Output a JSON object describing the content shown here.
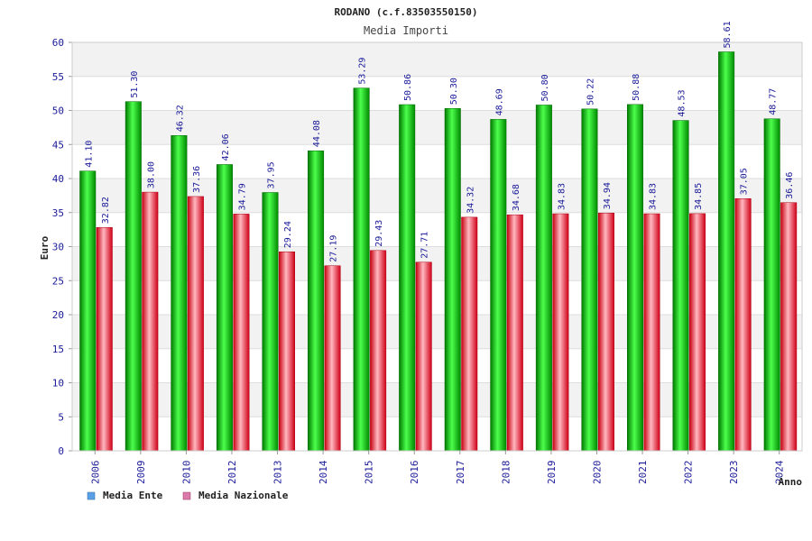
{
  "chart_data": {
    "type": "bar",
    "title": "RODANO (c.f.83503550150)",
    "subtitle": "Media Importi",
    "xlabel": "Anno",
    "ylabel": "Euro",
    "ylim": [
      0,
      60
    ],
    "ytick_step": 5,
    "grid": true,
    "legend_position": "bottom-left",
    "categories": [
      "2006",
      "2009",
      "2010",
      "2012",
      "2013",
      "2014",
      "2015",
      "2016",
      "2017",
      "2018",
      "2019",
      "2020",
      "2021",
      "2022",
      "2023",
      "2024"
    ],
    "series": [
      {
        "name": "Media Ente",
        "color": "#1fbf1f",
        "legend_color": "#5aa0e6",
        "values": [
          41.1,
          51.3,
          46.32,
          42.06,
          37.95,
          44.08,
          53.29,
          50.86,
          50.3,
          48.69,
          50.8,
          50.22,
          50.88,
          48.53,
          58.61,
          48.77
        ],
        "labels": [
          "41.10",
          "51.30",
          "46.32",
          "42.06",
          "37.95",
          "44.08",
          "53.29",
          "50.86",
          "50.30",
          "48.69",
          "50.80",
          "50.22",
          "50.88",
          "48.53",
          "58.61",
          "48.77"
        ]
      },
      {
        "name": "Media Nazionale",
        "color": "#e8303a",
        "legend_color": "#d97aa8",
        "values": [
          32.82,
          38.0,
          37.36,
          34.79,
          29.24,
          27.19,
          29.43,
          27.71,
          34.32,
          34.68,
          34.83,
          34.94,
          34.83,
          34.85,
          37.05,
          36.46
        ],
        "labels": [
          "32.82",
          "38.00",
          "37.36",
          "34.79",
          "29.24",
          "27.19",
          "29.43",
          "27.71",
          "34.32",
          "34.68",
          "34.83",
          "34.94",
          "34.83",
          "34.85",
          "37.05",
          "36.46"
        ]
      }
    ]
  }
}
